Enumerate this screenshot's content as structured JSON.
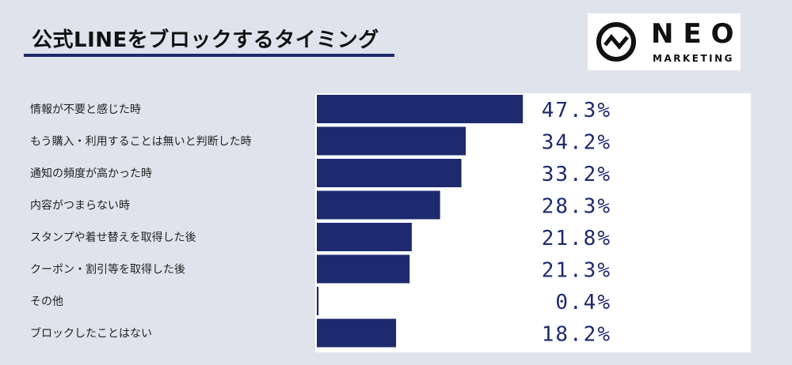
{
  "header": {
    "title": "公式LINEをブロックするタイミング"
  },
  "logo": {
    "name": "NEO",
    "subtitle": "MARKETING"
  },
  "colors": {
    "bar": "#1e2a6e",
    "background": "#dfe4ec",
    "plot_background": "#ffffff"
  },
  "chart_data": {
    "type": "bar",
    "orientation": "horizontal",
    "categories": [
      "情報が不要と感じた時",
      "もう購入・利用することは無いと判断した時",
      "通知の頻度が高かった時",
      "内容がつまらない時",
      "スタンプや着せ替えを取得した後",
      "クーポン・割引等を取得した後",
      "その他",
      "ブロックしたことはない"
    ],
    "values": [
      47.3,
      34.2,
      33.2,
      28.3,
      21.8,
      21.3,
      0.4,
      18.2
    ],
    "value_labels": [
      "47.3%",
      "34.2%",
      "33.2%",
      "28.3%",
      "21.8%",
      "21.3%",
      "0.4%",
      "18.2%"
    ],
    "xlim": [
      0,
      100
    ],
    "grid": false,
    "legend": "none"
  }
}
